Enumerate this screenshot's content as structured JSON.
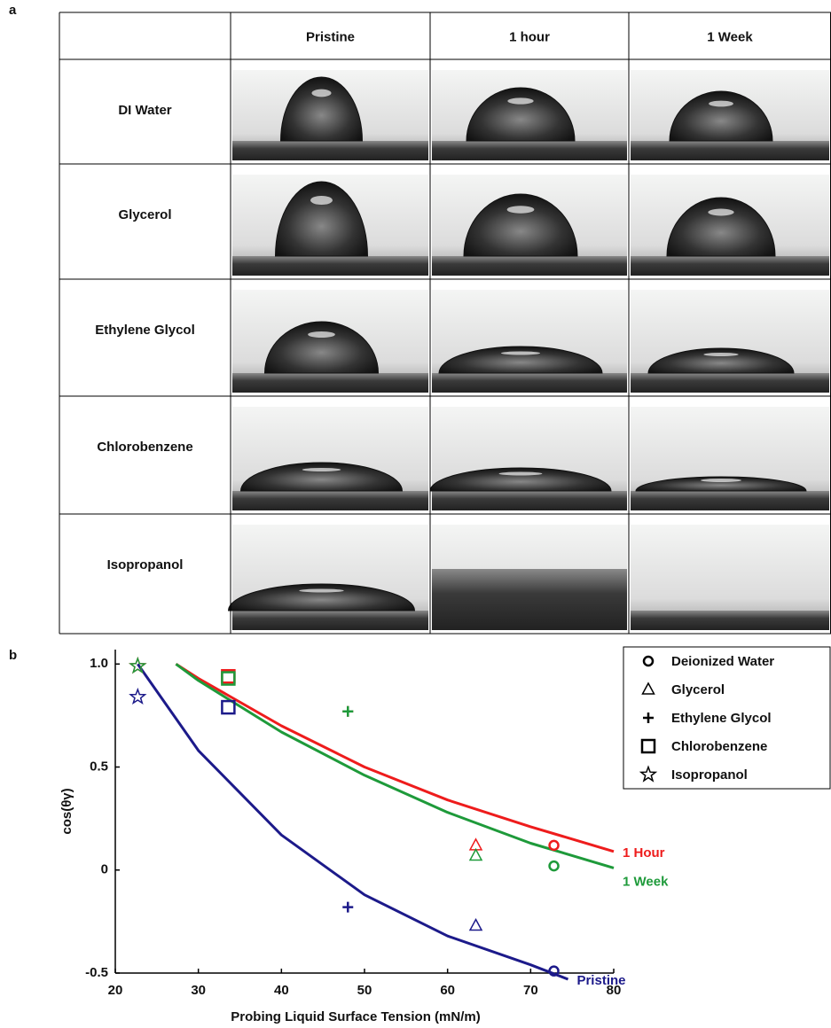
{
  "figure": {
    "panel_a_label": "a",
    "panel_b_label": "b",
    "table": {
      "columns": [
        "Pristine",
        "1 hour",
        "1 Week"
      ],
      "rows": [
        "DI Water",
        "Glycerol",
        "Ethylene Glycol",
        "Chlorobenzene",
        "Isopropanol"
      ]
    }
  },
  "chart_data": {
    "type": "scatter",
    "x_label": "Probing Liquid Surface Tension (mN/m)",
    "y_label": "cos(θγ)",
    "xlim": [
      20,
      80
    ],
    "ylim": [
      -0.5,
      1.07
    ],
    "xticks": [
      20,
      30,
      40,
      50,
      60,
      70,
      80
    ],
    "yticks": [
      {
        "value": 1,
        "label": "1.0"
      },
      0.5,
      0,
      -0.5
    ],
    "marker_legend": [
      {
        "name": "Deionized Water",
        "marker": "circle"
      },
      {
        "name": "Glycerol",
        "marker": "triangle"
      },
      {
        "name": "Ethylene Glycol",
        "marker": "plus"
      },
      {
        "name": "Chlorobenzene",
        "marker": "square"
      },
      {
        "name": "Isopropanol",
        "marker": "star"
      }
    ],
    "series": [
      {
        "name": "Pristine",
        "color": "#1c1a8a",
        "x": [
          72.8,
          63.4,
          48,
          33.6,
          22.7
        ],
        "values": [
          -0.49,
          -0.27,
          -0.18,
          0.79,
          0.84
        ],
        "fit_x": [
          22.7,
          30,
          40,
          50,
          60,
          70,
          74.5
        ],
        "fit_y": [
          1.0,
          0.58,
          0.17,
          -0.12,
          -0.32,
          -0.46,
          -0.53
        ]
      },
      {
        "name": "1 Hour",
        "color": "#ee1c1c",
        "x": [
          72.8,
          63.4,
          48,
          33.6,
          22.7
        ],
        "values": [
          0.12,
          0.12,
          0.77,
          0.94,
          0.99
        ],
        "fit_x": [
          27.3,
          30,
          40,
          50,
          60,
          70,
          80
        ],
        "fit_y": [
          1.0,
          0.93,
          0.7,
          0.5,
          0.34,
          0.21,
          0.09
        ]
      },
      {
        "name": "1 Week",
        "color": "#1e9a3a",
        "x": [
          72.8,
          63.4,
          48,
          33.6,
          22.7
        ],
        "values": [
          0.02,
          0.07,
          0.77,
          0.93,
          0.99
        ],
        "fit_x": [
          27.3,
          30,
          40,
          50,
          60,
          70,
          80
        ],
        "fit_y": [
          1.0,
          0.92,
          0.67,
          0.46,
          0.28,
          0.13,
          0.01
        ]
      }
    ]
  }
}
